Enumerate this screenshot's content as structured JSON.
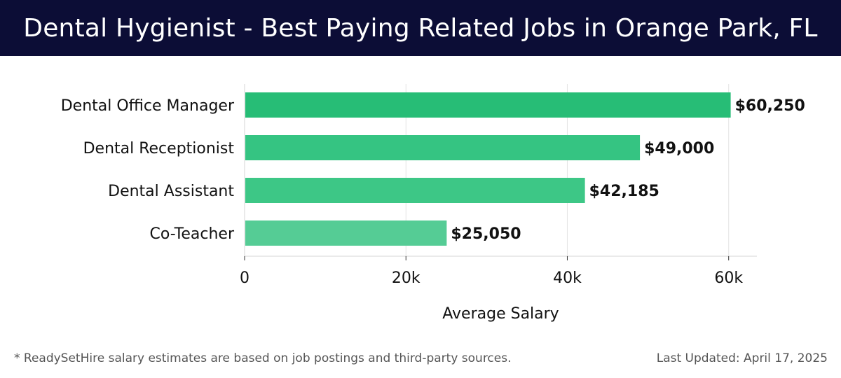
{
  "title": "Dental Hygienist - Best Paying Related Jobs in Orange Park, FL",
  "footnote": "* ReadySetHire salary estimates are based on job postings and third-party sources.",
  "last_updated": "Last Updated: April 17, 2025",
  "colors": {
    "header_bg": "#0c0d36",
    "bars": [
      "#27bd76",
      "#35c482",
      "#3dc786",
      "#55cc95"
    ]
  },
  "chart_data": {
    "type": "bar",
    "orientation": "horizontal",
    "categories": [
      "Dental Office Manager",
      "Dental Receptionist",
      "Dental Assistant",
      "Co-Teacher"
    ],
    "values": [
      60250,
      49000,
      42185,
      25050
    ],
    "value_labels": [
      "$60,250",
      "$49,000",
      "$42,185",
      "$25,050"
    ],
    "xlabel": "Average Salary",
    "ylabel": "",
    "xlim": [
      0,
      63500
    ],
    "xticks": [
      0,
      20000,
      40000,
      60000
    ],
    "xtick_labels": [
      "0",
      "20k",
      "40k",
      "60k"
    ],
    "grid": true
  }
}
